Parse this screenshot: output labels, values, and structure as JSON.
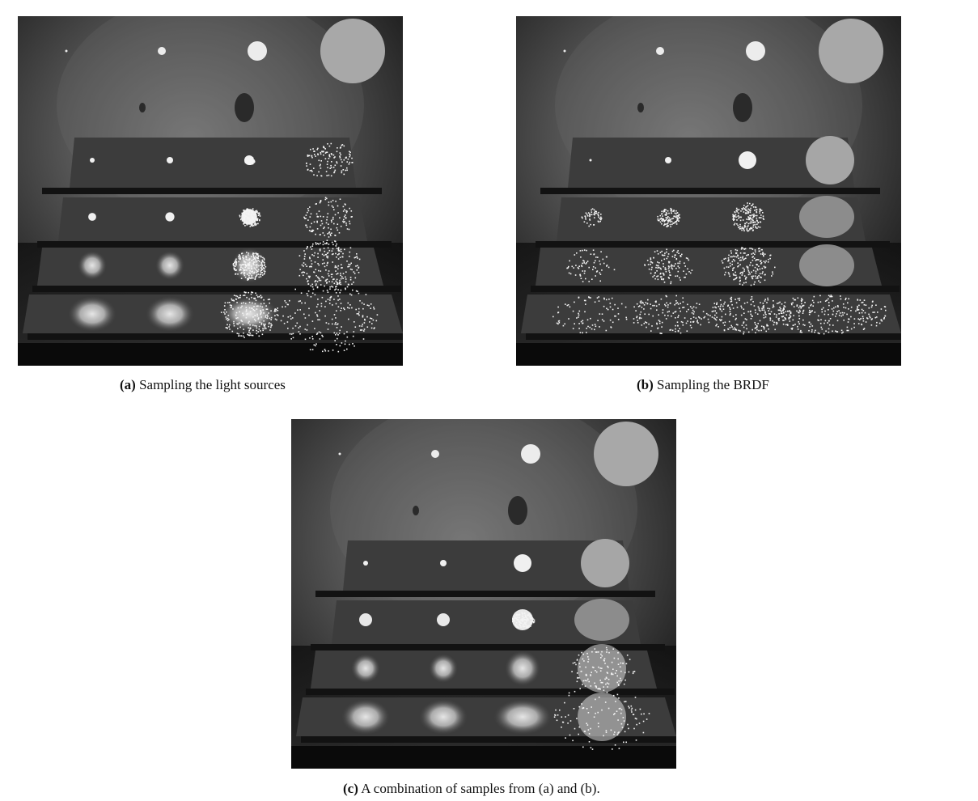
{
  "figures": [
    {
      "id": "a",
      "label": "(a)",
      "caption": "Sampling the light sources",
      "mode": "light"
    },
    {
      "id": "b",
      "label": "(b)",
      "caption": "Sampling the BRDF",
      "mode": "brdf"
    },
    {
      "id": "c",
      "label": "(c)",
      "caption": "A combination of samples from (a) and (b).",
      "mode": "combined"
    }
  ]
}
